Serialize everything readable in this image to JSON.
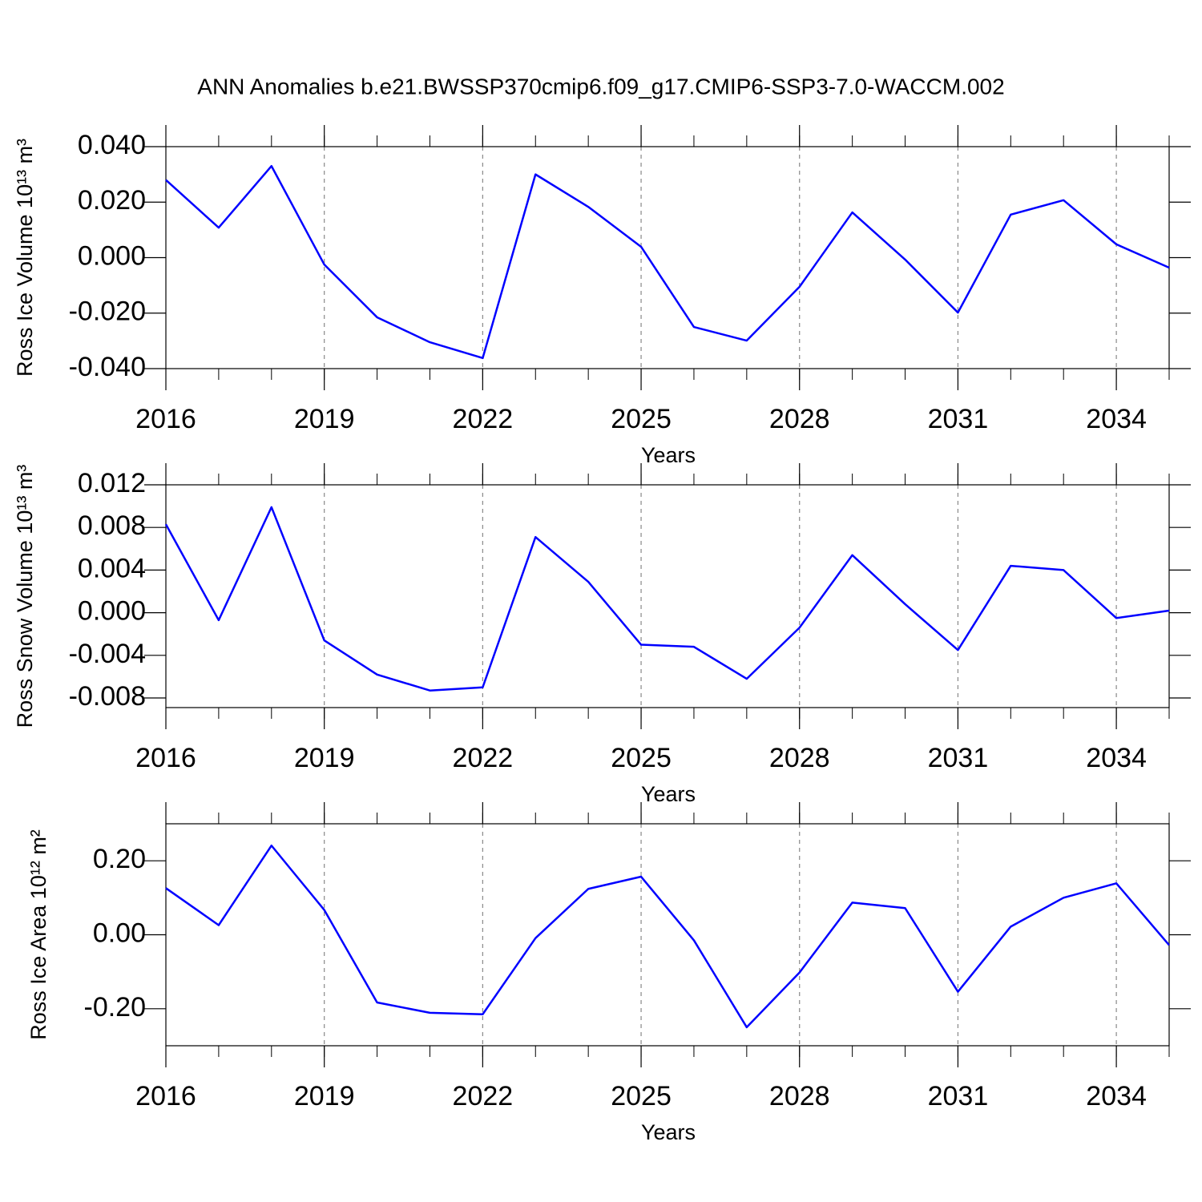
{
  "title": "ANN Anomalies b.e21.BWSSP370cmip6.f09_g17.CMIP6-SSP3-7.0-WACCM.002",
  "chart_data": [
    {
      "type": "line",
      "ylabel": "Ross Ice Volume 10¹³ m³",
      "xlabel": "Years",
      "x": [
        2016,
        2017,
        2018,
        2019,
        2020,
        2021,
        2022,
        2023,
        2024,
        2025,
        2026,
        2027,
        2028,
        2029,
        2030,
        2031,
        2032,
        2033,
        2034,
        2035
      ],
      "series": [
        {
          "color": "#0000ff",
          "values": [
            0.028,
            0.0108,
            0.033,
            -0.0025,
            -0.0215,
            -0.0305,
            -0.0362,
            0.03,
            0.0183,
            0.0039,
            -0.025,
            -0.0299,
            -0.0105,
            0.0163,
            -0.0007,
            -0.0198,
            0.0155,
            0.0207,
            0.0048,
            -0.0036
          ]
        }
      ],
      "xlim": [
        2016,
        2035
      ],
      "xticks": [
        2016,
        2019,
        2022,
        2025,
        2028,
        2031,
        2034
      ],
      "ylim": [
        -0.04,
        0.04
      ],
      "yticks": [
        {
          "value": -0.04,
          "label": "-0.040"
        },
        {
          "value": -0.02,
          "label": "-0.020"
        },
        {
          "value": 0,
          "label": "0.000"
        },
        {
          "value": 0.02,
          "label": "0.020"
        },
        {
          "value": 0.04,
          "label": "0.040"
        }
      ],
      "grid": true
    },
    {
      "type": "line",
      "ylabel": "Ross Snow Volume 10¹³ m³",
      "xlabel": "Years",
      "x": [
        2016,
        2017,
        2018,
        2019,
        2020,
        2021,
        2022,
        2023,
        2024,
        2025,
        2026,
        2027,
        2028,
        2029,
        2030,
        2031,
        2032,
        2033,
        2034,
        2035
      ],
      "series": [
        {
          "color": "#0000ff",
          "values": [
            0.0083,
            -0.0007,
            0.0099,
            -0.0026,
            -0.0058,
            -0.0073,
            -0.007,
            0.0071,
            0.0029,
            -0.003,
            -0.0032,
            -0.0062,
            -0.0014,
            0.0054,
            0.0008,
            -0.0035,
            0.0044,
            0.004,
            -0.0005,
            0.0002
          ]
        }
      ],
      "xlim": [
        2016,
        2035
      ],
      "xticks": [
        2016,
        2019,
        2022,
        2025,
        2028,
        2031,
        2034
      ],
      "ylim": [
        -0.0089,
        0.012
      ],
      "yticks": [
        {
          "value": -0.008,
          "label": "-0.008"
        },
        {
          "value": -0.004,
          "label": "-0.004"
        },
        {
          "value": 0,
          "label": "0.000"
        },
        {
          "value": 0.004,
          "label": "0.004"
        },
        {
          "value": 0.008,
          "label": "0.008"
        },
        {
          "value": 0.012,
          "label": "0.012"
        }
      ],
      "grid": true
    },
    {
      "type": "line",
      "ylabel": "Ross Ice Area 10¹² m²",
      "xlabel": "Years",
      "x": [
        2016,
        2017,
        2018,
        2019,
        2020,
        2021,
        2022,
        2023,
        2024,
        2025,
        2026,
        2027,
        2028,
        2029,
        2030,
        2031,
        2032,
        2033,
        2034,
        2035
      ],
      "series": [
        {
          "color": "#0000ff",
          "values": [
            0.126,
            0.026,
            0.241,
            0.067,
            -0.183,
            -0.211,
            -0.215,
            -0.009,
            0.124,
            0.157,
            -0.015,
            -0.25,
            -0.102,
            0.087,
            0.072,
            -0.154,
            0.022,
            0.1,
            0.139,
            -0.028
          ]
        }
      ],
      "xlim": [
        2016,
        2035
      ],
      "xticks": [
        2016,
        2019,
        2022,
        2025,
        2028,
        2031,
        2034
      ],
      "ylim": [
        -0.3,
        0.3
      ],
      "yticks": [
        {
          "value": -0.2,
          "label": "-0.20"
        },
        {
          "value": 0,
          "label": "0.00"
        },
        {
          "value": 0.2,
          "label": "0.20"
        }
      ],
      "grid": true
    }
  ]
}
